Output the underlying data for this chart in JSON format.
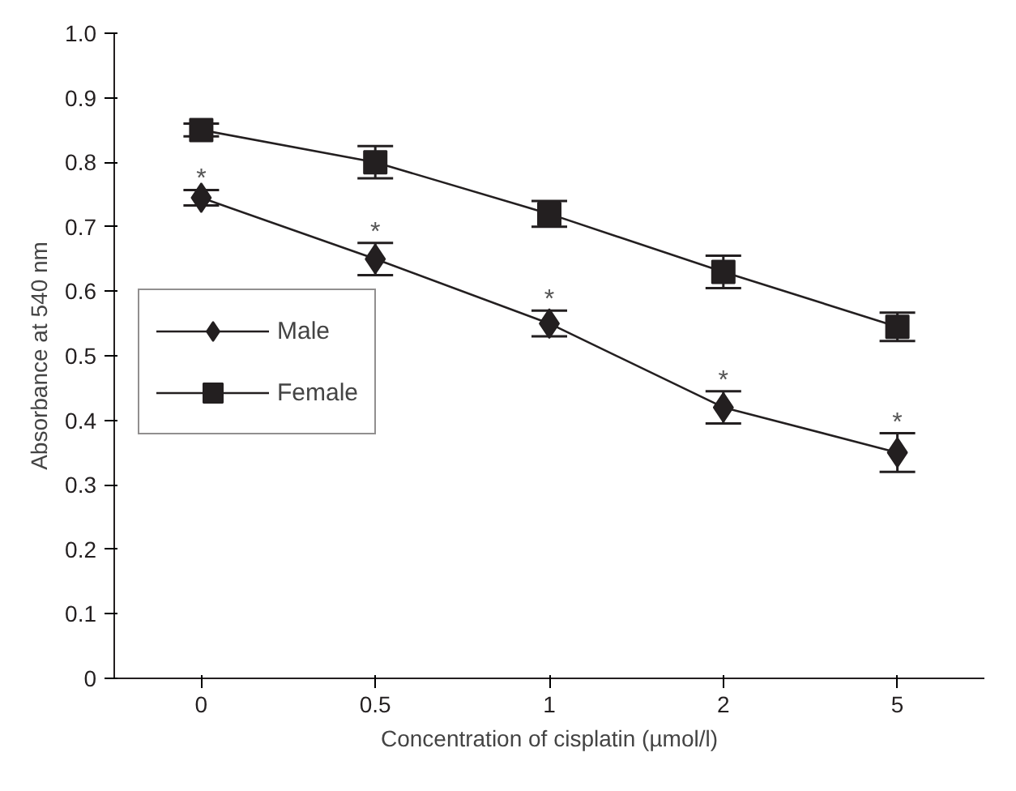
{
  "chart_data": {
    "type": "line",
    "xlabel": "Concentration of cisplatin (µmol/l)",
    "ylabel": "Absorbance at 540 nm",
    "categories": [
      "0",
      "0.5",
      "1",
      "2",
      "5"
    ],
    "series": [
      {
        "name": "Male",
        "color": "#231f20",
        "marker": "diamond",
        "values": [
          0.745,
          0.65,
          0.55,
          0.42,
          0.35
        ],
        "errors": [
          0.012,
          0.025,
          0.02,
          0.025,
          0.03
        ]
      },
      {
        "name": "Female",
        "color": "#231f20",
        "marker": "square",
        "values": [
          0.85,
          0.8,
          0.72,
          0.63,
          0.545
        ],
        "errors": [
          0.01,
          0.025,
          0.02,
          0.025,
          0.022
        ]
      }
    ],
    "ylim": [
      0,
      1.0
    ],
    "yticks": [
      0,
      0.1,
      0.2,
      0.3,
      0.4,
      0.5,
      0.6,
      0.7,
      0.8,
      0.9,
      {
        "value": 1.0,
        "label": "1.0"
      }
    ],
    "annotations": [
      {
        "text": "*",
        "x": "0",
        "y": 0.757
      },
      {
        "text": "*",
        "x": "0.5",
        "y": 0.675
      },
      {
        "text": "*",
        "x": "1",
        "y": 0.57
      },
      {
        "text": "*",
        "x": "2",
        "y": 0.445
      },
      {
        "text": "*",
        "x": "5",
        "y": 0.38
      }
    ],
    "grid": false,
    "legend": "left",
    "line_style": "solid"
  }
}
